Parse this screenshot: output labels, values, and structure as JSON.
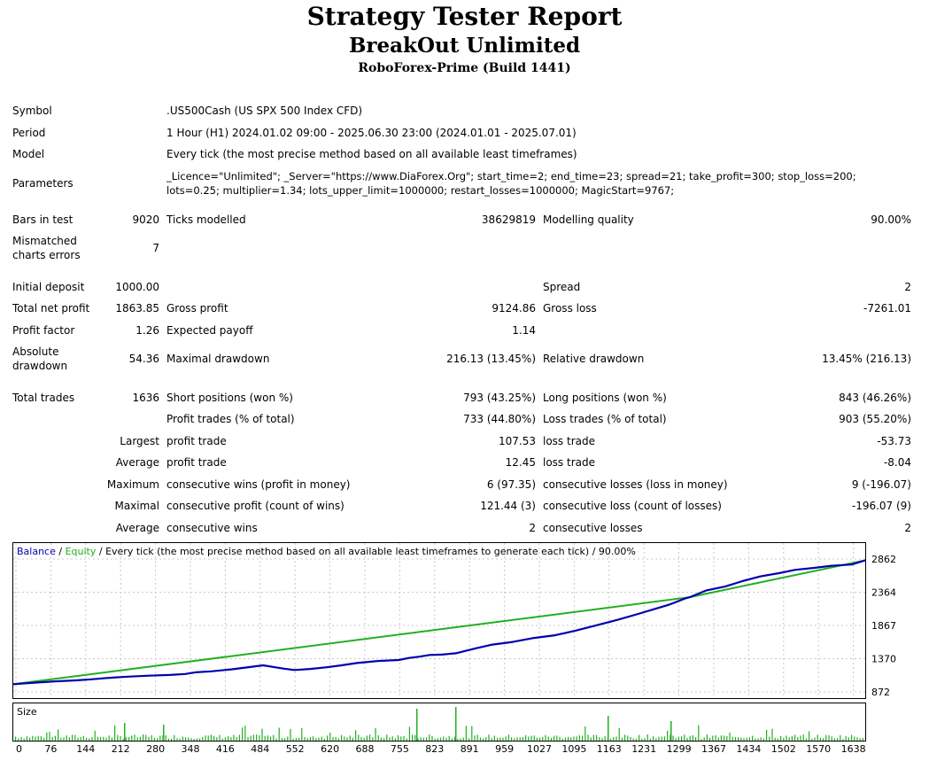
{
  "header": {
    "title": "Strategy Tester Report",
    "expert": "BreakOut Unlimited",
    "broker": "RoboForex-Prime (Build 1441)"
  },
  "info": {
    "symbol_label": "Symbol",
    "symbol_value": ".US500Cash (US SPX 500 Index CFD)",
    "period_label": "Period",
    "period_value": "1 Hour (H1) 2024.01.02 09:00 - 2025.06.30 23:00 (2024.01.01 - 2025.07.01)",
    "model_label": "Model",
    "model_value": "Every tick (the most precise method based on all available least timeframes)",
    "parameters_label": "Parameters",
    "parameters_line1": "_Licence=\"Unlimited\"; _Server=\"https://www.DiaForex.Org\"; start_time=2; end_time=23; spread=21; take_profit=300; stop_loss=200;",
    "parameters_line2": "lots=0.25; multiplier=1.34; lots_upper_limit=1000000; restart_losses=1000000; MagicStart=9767;"
  },
  "stats": {
    "bars_label": "Bars in test",
    "bars_value": "9020",
    "ticks_label": "Ticks modelled",
    "ticks_value": "38629819",
    "quality_label": "Modelling quality",
    "quality_value": "90.00%",
    "mismatch_label1": "Mismatched",
    "mismatch_label2": "charts errors",
    "mismatch_value": "7",
    "deposit_label": "Initial deposit",
    "deposit_value": "1000.00",
    "spread_label": "Spread",
    "spread_value": "2",
    "netprofit_label": "Total net profit",
    "netprofit_value": "1863.85",
    "grossprofit_label": "Gross profit",
    "grossprofit_value": "9124.86",
    "grossloss_label": "Gross loss",
    "grossloss_value": "-7261.01",
    "pf_label": "Profit factor",
    "pf_value": "1.26",
    "payoff_label": "Expected payoff",
    "payoff_value": "1.14",
    "absdd_label1": "Absolute",
    "absdd_label2": "drawdown",
    "absdd_value": "54.36",
    "maxdd_label": "Maximal drawdown",
    "maxdd_value": "216.13 (13.45%)",
    "reldd_label": "Relative drawdown",
    "reldd_value": "13.45% (216.13)",
    "trades_label": "Total trades",
    "trades_value": "1636",
    "short_label": "Short positions (won %)",
    "short_value": "793 (43.25%)",
    "long_label": "Long positions (won %)",
    "long_value": "843 (46.26%)",
    "ptrades_label": "Profit trades (% of total)",
    "ptrades_value": "733 (44.80%)",
    "ltrades_label": "Loss trades (% of total)",
    "ltrades_value": "903 (55.20%)",
    "largest_label": "Largest",
    "largest_profit_label": "profit trade",
    "largest_profit_value": "107.53",
    "largest_loss_label": "loss trade",
    "largest_loss_value": "-53.73",
    "average_label": "Average",
    "average_profit_label": "profit trade",
    "average_profit_value": "12.45",
    "average_loss_label": "loss trade",
    "average_loss_value": "-8.04",
    "maximum_label": "Maximum",
    "max_wins_label": "consecutive wins (profit in money)",
    "max_wins_value": "6 (97.35)",
    "max_losses_label": "consecutive losses (loss in money)",
    "max_losses_value": "9 (-196.07)",
    "maximal_label": "Maximal",
    "maximal_profit_label": "consecutive profit (count of wins)",
    "maximal_profit_value": "121.44 (3)",
    "maximal_loss_label": "consecutive loss (count of losses)",
    "maximal_loss_value": "-196.07 (9)",
    "average2_label": "Average",
    "avg_wins_label": "consecutive wins",
    "avg_wins_value": "2",
    "avg_losses_label": "consecutive losses",
    "avg_losses_value": "2"
  },
  "chart_legend": {
    "balance": "Balance",
    "sep1": " / ",
    "equity": "Equity",
    "rest": " / Every tick (the most precise method based on all available least timeframes to generate each tick) / 90.00%"
  },
  "size_label": "Size",
  "colors": {
    "balance": "#0000b0",
    "equity": "#20b020",
    "volume": "#20b020",
    "grid": "#c8c8c8"
  },
  "chart_data": {
    "type": "line",
    "x_ticks": [
      "0",
      "76",
      "144",
      "212",
      "280",
      "348",
      "416",
      "484",
      "552",
      "620",
      "688",
      "755",
      "823",
      "891",
      "959",
      "1027",
      "1095",
      "1163",
      "1231",
      "1299",
      "1367",
      "1434",
      "1502",
      "1570",
      "1638"
    ],
    "y_ticks": [
      "2862",
      "2364",
      "1867",
      "1370",
      "872"
    ],
    "xlim": [
      0,
      1636
    ],
    "ylim": [
      872,
      2862
    ],
    "series": [
      {
        "name": "Balance",
        "x": [
          0,
          40,
          80,
          120,
          150,
          180,
          220,
          260,
          300,
          330,
          350,
          380,
          420,
          460,
          480,
          500,
          520,
          540,
          570,
          600,
          630,
          660,
          700,
          740,
          760,
          780,
          800,
          823,
          850,
          870,
          891,
          920,
          959,
          1000,
          1040,
          1080,
          1120,
          1160,
          1200,
          1230,
          1260,
          1290,
          1299,
          1330,
          1367,
          1400,
          1434,
          1470,
          1502,
          1540,
          1570,
          1610,
          1636
        ],
        "y": [
          988,
          1010,
          1030,
          1045,
          1060,
          1080,
          1100,
          1115,
          1125,
          1140,
          1165,
          1180,
          1210,
          1250,
          1270,
          1245,
          1220,
          1200,
          1215,
          1240,
          1270,
          1305,
          1335,
          1350,
          1380,
          1400,
          1425,
          1430,
          1450,
          1490,
          1530,
          1580,
          1620,
          1680,
          1720,
          1790,
          1870,
          1950,
          2040,
          2110,
          2180,
          2270,
          2290,
          2390,
          2450,
          2530,
          2600,
          2650,
          2700,
          2730,
          2760,
          2780,
          2842
        ]
      },
      {
        "name": "Equity",
        "x": [
          0,
          1299,
          1636
        ],
        "y": [
          988,
          2290,
          2842
        ]
      }
    ]
  }
}
